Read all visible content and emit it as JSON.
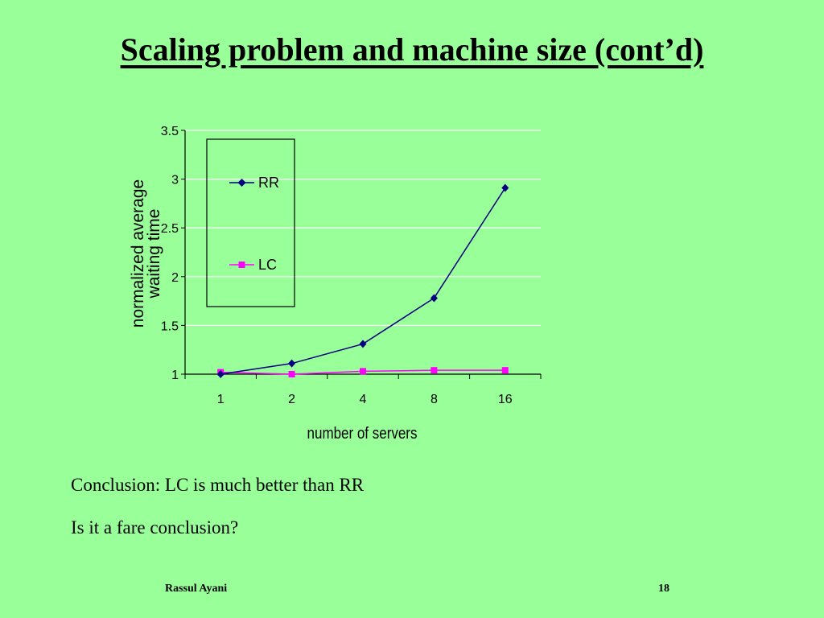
{
  "slide": {
    "title": "Scaling problem and machine size (cont’d)",
    "body": [
      "Conclusion: LC is much better than RR",
      "Is it a fare conclusion?"
    ],
    "footer_author": "Rassul Ayani",
    "page_number": "18"
  },
  "colors": {
    "background": "#99ff99",
    "rr": "#000080",
    "lc": "#ff00ff",
    "grid": "#ffffff"
  },
  "chart_data": {
    "type": "line",
    "categories": [
      "1",
      "2",
      "4",
      "8",
      "16"
    ],
    "series": [
      {
        "name": "RR",
        "values": [
          1.0,
          1.11,
          1.31,
          1.78,
          2.91
        ],
        "marker": "diamond"
      },
      {
        "name": "LC",
        "values": [
          1.02,
          1.0,
          1.03,
          1.04,
          1.04
        ],
        "marker": "square"
      }
    ],
    "xlabel": "number of servers",
    "ylabel_lines": [
      "normalized average",
      "waiting time"
    ],
    "ylim": [
      1,
      3.5
    ],
    "yticks": [
      "1",
      "1.5",
      "2",
      "2.5",
      "3",
      "3.5"
    ],
    "grid": true,
    "legend_position": "left-inside"
  }
}
